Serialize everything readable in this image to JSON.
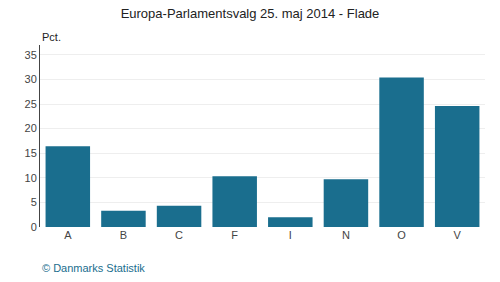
{
  "chart_data": {
    "type": "bar",
    "title": "Europa-Parlamentsvalg 25. maj 2014 - Flade",
    "categories": [
      "A",
      "B",
      "C",
      "F",
      "I",
      "N",
      "O",
      "V"
    ],
    "values": [
      16.4,
      3.3,
      4.3,
      10.3,
      2.0,
      9.7,
      30.4,
      24.6
    ],
    "color": "#1a6e8e",
    "ylabel": "Pct.",
    "annotations": [
      "© Danmarks Statistik"
    ],
    "ylim": [
      0,
      37
    ],
    "yticks": [
      0,
      5,
      10,
      15,
      20,
      25,
      30,
      35
    ],
    "grid": true
  }
}
